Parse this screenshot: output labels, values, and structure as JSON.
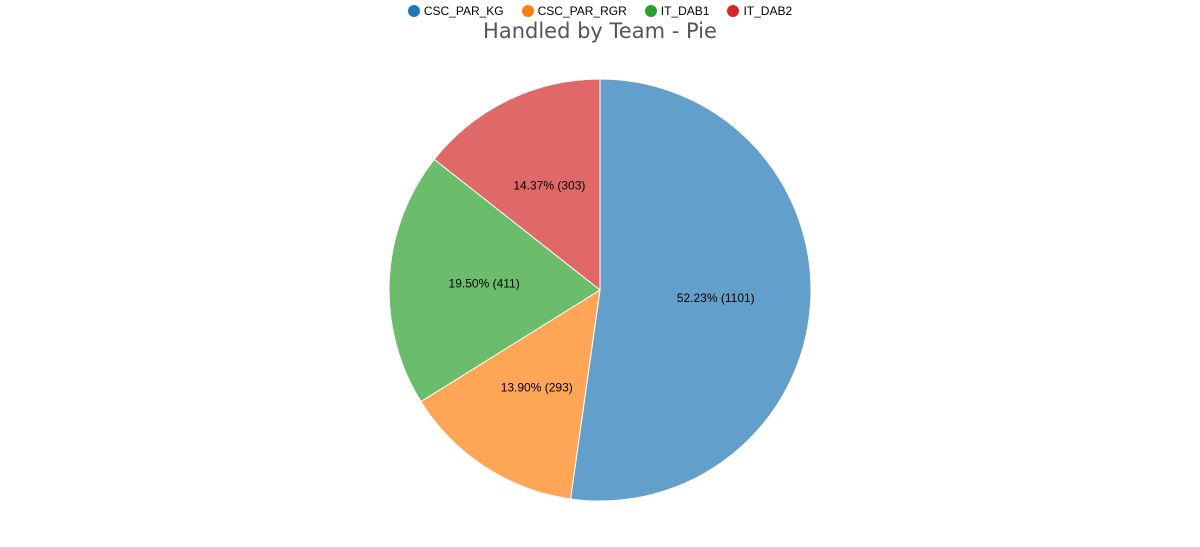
{
  "chart_data": {
    "type": "pie",
    "title": "Handled by Team - Pie",
    "legend_position": "top-center",
    "slices": [
      {
        "name": "CSC_PAR_KG",
        "value": 1101,
        "label": "52.23% (1101)",
        "legend_color": "#1f77b4",
        "color": "#629fca"
      },
      {
        "name": "CSC_PAR_RGR",
        "value": 293,
        "label": "13.90% (293)",
        "legend_color": "#ff7f0e",
        "color": "#ffa556"
      },
      {
        "name": "IT_DAB1",
        "value": 411,
        "label": "19.50% (411)",
        "legend_color": "#2ca02c",
        "color": "#6bbc6b"
      },
      {
        "name": "IT_DAB2",
        "value": 303,
        "label": "14.37% (303)",
        "legend_color": "#d62728",
        "color": "#e16868"
      }
    ]
  }
}
